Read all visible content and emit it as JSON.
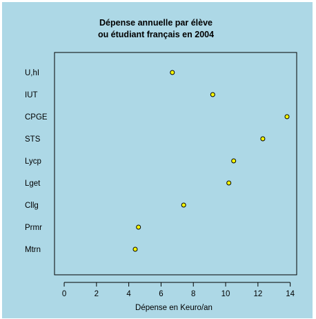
{
  "chart_data": {
    "type": "scatter",
    "title_lines": [
      "Dépense annuelle par élève",
      "ou étudiant français en 2004"
    ],
    "xlabel": "Dépense en Keuro/an",
    "ylabel": "",
    "xlim": [
      -0.6,
      14.4
    ],
    "x_ticks": [
      0,
      2,
      4,
      6,
      8,
      10,
      12,
      14
    ],
    "grid": false,
    "point_color": "#ffff00",
    "point_stroke": "#000000",
    "background": "#add8e6",
    "categories": [
      "U,hI",
      "IUT",
      "CPGE",
      "STS",
      "Lycp",
      "Lget",
      "Cllg",
      "Prmr",
      "Mtrn"
    ],
    "values": [
      6.7,
      9.2,
      13.8,
      12.3,
      10.5,
      10.2,
      7.4,
      4.6,
      4.4
    ]
  }
}
